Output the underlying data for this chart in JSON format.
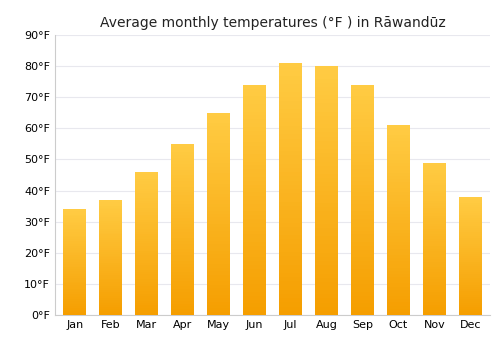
{
  "title": "Average monthly temperatures (°F ) in Rāwandūz",
  "months": [
    "Jan",
    "Feb",
    "Mar",
    "Apr",
    "May",
    "Jun",
    "Jul",
    "Aug",
    "Sep",
    "Oct",
    "Nov",
    "Dec"
  ],
  "values": [
    34,
    37,
    46,
    55,
    65,
    74,
    81,
    80,
    74,
    61,
    49,
    38
  ],
  "bar_color_main": "#FBB022",
  "bar_color_highlight": "#FFCC44",
  "bar_color_shadow": "#E09000",
  "background_color": "#ffffff",
  "grid_color": "#e8e8ee",
  "ylim": [
    0,
    90
  ],
  "yticks": [
    0,
    10,
    20,
    30,
    40,
    50,
    60,
    70,
    80,
    90
  ],
  "ytick_labels": [
    "0°F",
    "10°F",
    "20°F",
    "30°F",
    "40°F",
    "50°F",
    "60°F",
    "70°F",
    "80°F",
    "90°F"
  ],
  "title_fontsize": 10,
  "tick_fontsize": 8,
  "bar_width": 0.65
}
